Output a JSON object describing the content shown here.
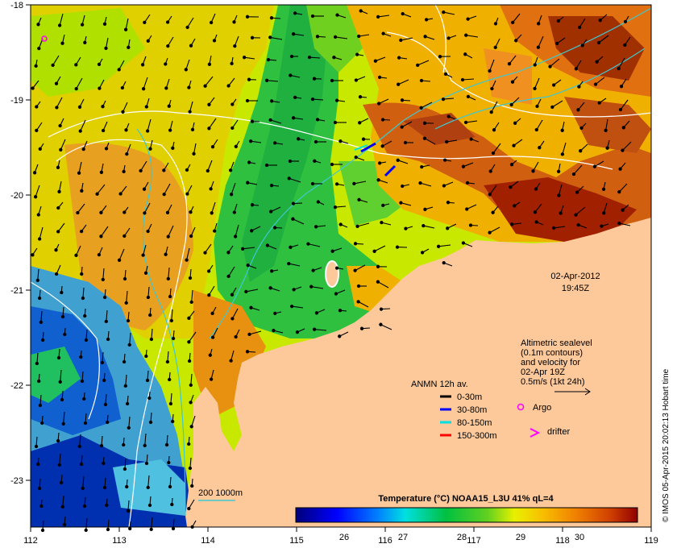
{
  "map": {
    "date": "02-Apr-2012",
    "time": "19:45Z",
    "credit": "© IMOS 05-Apr-2015 20:02:13 Hobart time",
    "x_ticks": [
      "112",
      "113",
      "114",
      "115",
      "116",
      "117",
      "118",
      "119"
    ],
    "y_ticks": [
      "-18",
      "-19",
      "-20",
      "-21",
      "-22",
      "-23"
    ]
  },
  "altimetry": {
    "line1": "Altimetric sealevel",
    "line2": "(0.1m contours)",
    "line3": "and velocity for",
    "line4": "02-Apr 19Z",
    "line5": "0.5m/s (1kt 24h)"
  },
  "legend": {
    "title": "ANMN 12h av.",
    "items": [
      {
        "label": "0-30m",
        "color": "#000000"
      },
      {
        "label": "30-80m",
        "color": "#0000ff"
      },
      {
        "label": "80-150m",
        "color": "#00e0e0"
      },
      {
        "label": "150-300m",
        "color": "#ff0000"
      }
    ],
    "argo": "Argo",
    "drifter": "drifter",
    "isobath": "200  1000m"
  },
  "colorbar": {
    "title": "Temperature (°C) NOAA15_L3U 41% qL=4",
    "labels": [
      "26",
      "27",
      "28",
      "29",
      "30"
    ]
  },
  "colors": {
    "land": "#fdc99b",
    "argo": "#ff00ff",
    "isobath": "#40c8d0"
  }
}
